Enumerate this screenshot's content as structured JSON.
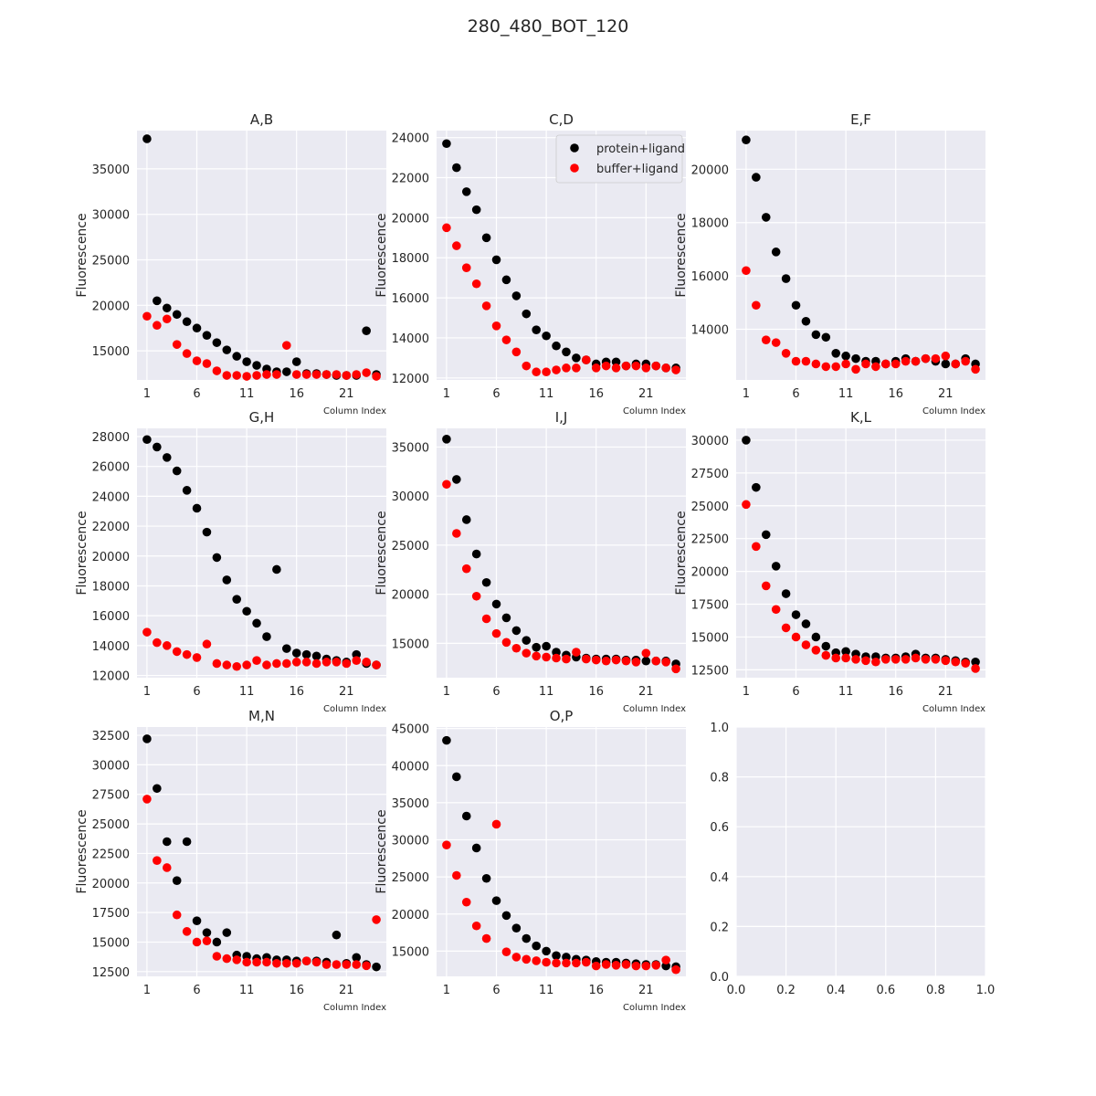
{
  "figure": {
    "title": "280_480_BOT_120"
  },
  "colors": {
    "plot_bg": "#eaeaf2",
    "grid": "#ffffff",
    "protein": "#000000",
    "buffer": "#ff0000",
    "text": "#262626"
  },
  "legend": {
    "panel": 1,
    "placement": "top-right",
    "entries": [
      "protein+ligand",
      "buffer+ligand"
    ]
  },
  "chart_data": [
    {
      "type": "scatter",
      "title": "A,B",
      "xlabel": "Column Index",
      "ylabel": "Fluorescence",
      "xlim": [
        0,
        25
      ],
      "ylim": [
        11800,
        39200
      ],
      "xticks": [
        1,
        6,
        11,
        16,
        21
      ],
      "yticks": [
        15000,
        20000,
        25000,
        30000,
        35000
      ],
      "series": [
        {
          "name": "protein+ligand",
          "color": "#000000",
          "y": [
            38300,
            20500,
            19700,
            19000,
            18200,
            17500,
            16700,
            15900,
            15100,
            14400,
            13800,
            13400,
            13000,
            12700,
            12700,
            13800,
            12500,
            12500,
            12400,
            12300,
            12300,
            12300,
            17200,
            12400
          ]
        },
        {
          "name": "buffer+ligand",
          "color": "#ff0000",
          "y": [
            18800,
            17800,
            18500,
            15700,
            14700,
            13900,
            13600,
            12800,
            12300,
            12300,
            12200,
            12300,
            12400,
            12400,
            15600,
            12400,
            12400,
            12400,
            12400,
            12400,
            12300,
            12400,
            12600,
            12200
          ]
        }
      ]
    },
    {
      "type": "scatter",
      "title": "C,D",
      "xlabel": "Column Index",
      "ylabel": "Fluorescence",
      "xlim": [
        0,
        25
      ],
      "ylim": [
        11900,
        24350
      ],
      "xticks": [
        1,
        6,
        11,
        16,
        21
      ],
      "yticks": [
        12000,
        14000,
        16000,
        18000,
        20000,
        22000,
        24000
      ],
      "series": [
        {
          "name": "protein+ligand",
          "color": "#000000",
          "y": [
            23700,
            22500,
            21300,
            20400,
            19000,
            17900,
            16900,
            16100,
            15200,
            14400,
            14100,
            13600,
            13300,
            13000,
            12900,
            12700,
            12800,
            12800,
            12600,
            12700,
            12700,
            12600,
            12500,
            12500
          ]
        },
        {
          "name": "buffer+ligand",
          "color": "#ff0000",
          "y": [
            19500,
            18600,
            17500,
            16700,
            15600,
            14600,
            13900,
            13300,
            12600,
            12300,
            12300,
            12400,
            12500,
            12500,
            12900,
            12500,
            12600,
            12500,
            12600,
            12600,
            12500,
            12600,
            12500,
            12400
          ]
        }
      ]
    },
    {
      "type": "scatter",
      "title": "E,F",
      "xlabel": "Column Index",
      "ylabel": "Fluorescence",
      "xlim": [
        0,
        25
      ],
      "ylim": [
        12100,
        21450
      ],
      "xticks": [
        1,
        6,
        11,
        16,
        21
      ],
      "yticks": [
        14000,
        16000,
        18000,
        20000
      ],
      "series": [
        {
          "name": "protein+ligand",
          "color": "#000000",
          "y": [
            21100,
            19700,
            18200,
            16900,
            15900,
            14900,
            14300,
            13800,
            13700,
            13100,
            13000,
            12900,
            12800,
            12800,
            12700,
            12800,
            12900,
            12800,
            12900,
            12800,
            12700,
            12700,
            12900,
            12700
          ]
        },
        {
          "name": "buffer+ligand",
          "color": "#ff0000",
          "y": [
            16200,
            14900,
            13600,
            13500,
            13100,
            12800,
            12800,
            12700,
            12600,
            12600,
            12700,
            12500,
            12700,
            12600,
            12700,
            12700,
            12800,
            12800,
            12900,
            12900,
            13000,
            12700,
            12800,
            12500
          ]
        }
      ]
    },
    {
      "type": "scatter",
      "title": "G,H",
      "xlabel": "Column Index",
      "ylabel": "Fluorescence",
      "xlim": [
        0,
        25
      ],
      "ylim": [
        11850,
        28550
      ],
      "xticks": [
        1,
        6,
        11,
        16,
        21
      ],
      "yticks": [
        12000,
        14000,
        16000,
        18000,
        20000,
        22000,
        24000,
        26000,
        28000
      ],
      "series": [
        {
          "name": "protein+ligand",
          "color": "#000000",
          "y": [
            27800,
            27300,
            26600,
            25700,
            24400,
            23200,
            21600,
            19900,
            18400,
            17100,
            16300,
            15500,
            14600,
            19100,
            13800,
            13500,
            13400,
            13300,
            13100,
            13000,
            12900,
            13400,
            12800,
            12700
          ]
        },
        {
          "name": "buffer+ligand",
          "color": "#ff0000",
          "y": [
            14900,
            14200,
            14000,
            13600,
            13400,
            13200,
            14100,
            12800,
            12700,
            12600,
            12700,
            13000,
            12700,
            12800,
            12800,
            12900,
            12900,
            12800,
            12900,
            12900,
            12800,
            13000,
            12900,
            12700
          ]
        }
      ]
    },
    {
      "type": "scatter",
      "title": "I,J",
      "xlabel": "Column Index",
      "ylabel": "Fluorescence",
      "xlim": [
        0,
        25
      ],
      "ylim": [
        11500,
        36900
      ],
      "xticks": [
        1,
        6,
        11,
        16,
        21
      ],
      "yticks": [
        15000,
        20000,
        25000,
        30000,
        35000
      ],
      "series": [
        {
          "name": "protein+ligand",
          "color": "#000000",
          "y": [
            35800,
            31700,
            27600,
            24100,
            21200,
            19000,
            17600,
            16300,
            15300,
            14600,
            14700,
            14100,
            13800,
            13600,
            13500,
            13400,
            13400,
            13400,
            13300,
            13300,
            13200,
            13200,
            13200,
            12900
          ]
        },
        {
          "name": "buffer+ligand",
          "color": "#ff0000",
          "y": [
            31200,
            26200,
            22600,
            19800,
            17500,
            16000,
            15100,
            14500,
            14000,
            13700,
            13600,
            13500,
            13400,
            14100,
            13400,
            13300,
            13200,
            13300,
            13200,
            13100,
            14000,
            13200,
            13100,
            12400
          ]
        }
      ]
    },
    {
      "type": "scatter",
      "title": "K,L",
      "xlabel": "Column Index",
      "ylabel": "Fluorescence",
      "xlim": [
        0,
        25
      ],
      "ylim": [
        11900,
        30900
      ],
      "xticks": [
        1,
        6,
        11,
        16,
        21
      ],
      "yticks": [
        12500,
        15000,
        17500,
        20000,
        22500,
        25000,
        27500,
        30000
      ],
      "series": [
        {
          "name": "protein+ligand",
          "color": "#000000",
          "y": [
            30000,
            26400,
            22800,
            20400,
            18300,
            16700,
            16000,
            15000,
            14300,
            13800,
            13900,
            13700,
            13500,
            13500,
            13400,
            13400,
            13500,
            13700,
            13400,
            13400,
            13300,
            13200,
            13100,
            13100
          ]
        },
        {
          "name": "buffer+ligand",
          "color": "#ff0000",
          "y": [
            25100,
            21900,
            18900,
            17100,
            15700,
            15000,
            14400,
            14000,
            13600,
            13400,
            13400,
            13300,
            13200,
            13100,
            13300,
            13300,
            13300,
            13400,
            13300,
            13300,
            13200,
            13100,
            13000,
            12600
          ]
        }
      ]
    },
    {
      "type": "scatter",
      "title": "M,N",
      "xlabel": "Column Index",
      "ylabel": "Fluorescence",
      "xlim": [
        0,
        25
      ],
      "ylim": [
        12100,
        33200
      ],
      "xticks": [
        1,
        6,
        11,
        16,
        21
      ],
      "yticks": [
        12500,
        15000,
        17500,
        20000,
        22500,
        25000,
        27500,
        30000,
        32500
      ],
      "series": [
        {
          "name": "protein+ligand",
          "color": "#000000",
          "y": [
            32200,
            28000,
            23500,
            20200,
            23500,
            16800,
            15800,
            15000,
            15800,
            13900,
            13800,
            13600,
            13700,
            13500,
            13500,
            13400,
            13400,
            13400,
            13300,
            15600,
            13200,
            13700,
            13100,
            12900
          ]
        },
        {
          "name": "buffer+ligand",
          "color": "#ff0000",
          "y": [
            27100,
            21900,
            21300,
            17300,
            15900,
            15000,
            15100,
            13800,
            13600,
            13500,
            13300,
            13300,
            13300,
            13200,
            13200,
            13200,
            13400,
            13300,
            13100,
            13100,
            13100,
            13100,
            13000,
            16900
          ]
        }
      ]
    },
    {
      "type": "scatter",
      "title": "O,P",
      "xlabel": "Column Index",
      "ylabel": "Fluorescence",
      "xlim": [
        0,
        25
      ],
      "ylim": [
        11600,
        45200
      ],
      "xticks": [
        1,
        6,
        11,
        16,
        21
      ],
      "yticks": [
        15000,
        20000,
        25000,
        30000,
        35000,
        40000,
        45000
      ],
      "series": [
        {
          "name": "protein+ligand",
          "color": "#000000",
          "y": [
            43400,
            38500,
            33200,
            28900,
            24800,
            21800,
            19800,
            18100,
            16700,
            15700,
            15000,
            14400,
            14200,
            13900,
            13800,
            13600,
            13500,
            13500,
            13400,
            13300,
            13200,
            13200,
            13000,
            12900
          ]
        },
        {
          "name": "buffer+ligand",
          "color": "#ff0000",
          "y": [
            29300,
            25200,
            21600,
            18400,
            16700,
            32100,
            14900,
            14200,
            13900,
            13700,
            13500,
            13400,
            13400,
            13400,
            13500,
            13000,
            13200,
            13100,
            13200,
            13000,
            13000,
            13100,
            13800,
            12500
          ]
        }
      ]
    },
    {
      "type": "scatter",
      "title": "",
      "xlabel": "",
      "ylabel": "",
      "xlim": [
        0,
        1
      ],
      "ylim": [
        0,
        1
      ],
      "xticks": [
        0,
        0.2,
        0.4,
        0.6,
        0.8,
        1
      ],
      "yticks": [
        0,
        0.2,
        0.4,
        0.6,
        0.8,
        1
      ],
      "xtick_labels": [
        "0.0",
        "0.2",
        "0.4",
        "0.6",
        "0.8",
        "1.0"
      ],
      "ytick_labels": [
        "0.0",
        "0.2",
        "0.4",
        "0.6",
        "0.8",
        "1.0"
      ],
      "series": []
    }
  ]
}
